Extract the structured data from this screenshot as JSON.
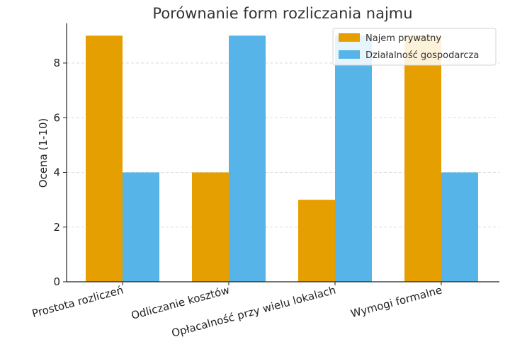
{
  "chart_data": {
    "type": "bar",
    "title": "Porównanie form rozliczania najmu",
    "xlabel": "",
    "ylabel": "Ocena (1-10)",
    "categories": [
      "Prostota rozliczeń",
      "Odliczanie kosztów",
      "Opłacalność przy wielu lokalach",
      "Wymogi formalne"
    ],
    "series": [
      {
        "name": "Najem prywatny",
        "values": [
          9,
          4,
          3,
          9
        ],
        "color": "#E69F00"
      },
      {
        "name": "Działalność gospodarcza",
        "values": [
          4,
          9,
          9,
          4
        ],
        "color": "#56B4E9"
      }
    ],
    "ylim": [
      0,
      9.45
    ],
    "yticks": [
      0,
      2,
      4,
      6,
      8
    ],
    "grid": "y-dashed",
    "legend_position": "top-right"
  }
}
